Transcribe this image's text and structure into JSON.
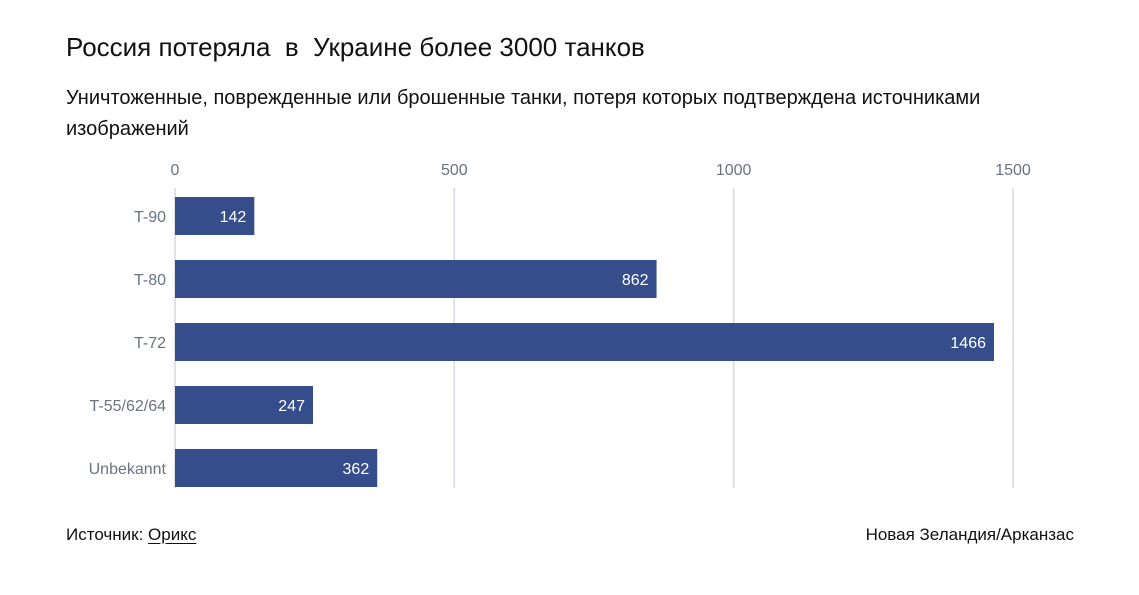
{
  "header": {
    "title": "Россия потеряла  в  Украине более 3000 танков",
    "subtitle": "Уничтоженные, поврежденные или брошенные танки, потеря которых подтверждена источниками изображений"
  },
  "footer": {
    "source_label": "Источник:",
    "source_link": "Орикс",
    "credit": "Новая Зеландия/Арканзас"
  },
  "colors": {
    "bar": "#364D8B",
    "grid": "#d6d9df",
    "tick_label": "#6b7280",
    "value_label": "#ffffff"
  },
  "chart_data": {
    "type": "bar",
    "orientation": "horizontal",
    "categories": [
      "T-90",
      "T-80",
      "T-72",
      "T-55/62/64",
      "Unbekannt"
    ],
    "values": [
      142,
      862,
      1466,
      247,
      362
    ],
    "xlim": [
      0,
      1500
    ],
    "xticks": [
      "0",
      "500",
      "1000",
      "1500"
    ],
    "grid": true,
    "axis_position": "top"
  }
}
